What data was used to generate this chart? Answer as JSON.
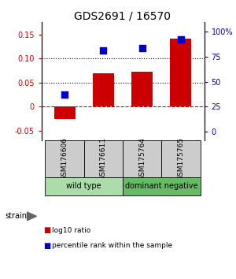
{
  "title": "GDS2691 / 16570",
  "samples": [
    "GSM176606",
    "GSM176611",
    "GSM175764",
    "GSM175765"
  ],
  "log10_ratio": [
    -0.025,
    0.07,
    0.072,
    0.141
  ],
  "percentile_rank": [
    0.37,
    0.81,
    0.84,
    0.92
  ],
  "bar_color": "#cc0000",
  "dot_color": "#0000cc",
  "ylim_left": [
    -0.07,
    0.175
  ],
  "ylim_right": [
    -0.0875,
    1.09375
  ],
  "yticks_left": [
    -0.05,
    0.0,
    0.05,
    0.1,
    0.15
  ],
  "yticks_right": [
    0.0,
    0.25,
    0.5,
    0.75,
    1.0
  ],
  "ytick_labels_right": [
    "0",
    "25",
    "50",
    "75",
    "100%"
  ],
  "ytick_labels_left": [
    "-0.05",
    "0",
    "0.05",
    "0.10",
    "0.15"
  ],
  "hlines": [
    0.05,
    0.1
  ],
  "zero_line_color": "#cc0000",
  "hline_color": "#000000",
  "groups": [
    {
      "label": "wild type",
      "samples": [
        0,
        1
      ],
      "color": "#aaddaa"
    },
    {
      "label": "dominant negative",
      "samples": [
        2,
        3
      ],
      "color": "#66bb66"
    }
  ],
  "sample_box_color": "#cccccc",
  "strain_label": "strain",
  "legend_items": [
    {
      "color": "#cc0000",
      "label": "log10 ratio"
    },
    {
      "color": "#0000cc",
      "label": "percentile rank within the sample"
    }
  ],
  "bar_width": 0.55,
  "dot_size": 35,
  "title_fontsize": 10,
  "tick_fontsize": 7,
  "sample_fontsize": 6.5,
  "group_fontsize": 7,
  "legend_fontsize": 7,
  "strain_fontsize": 7
}
